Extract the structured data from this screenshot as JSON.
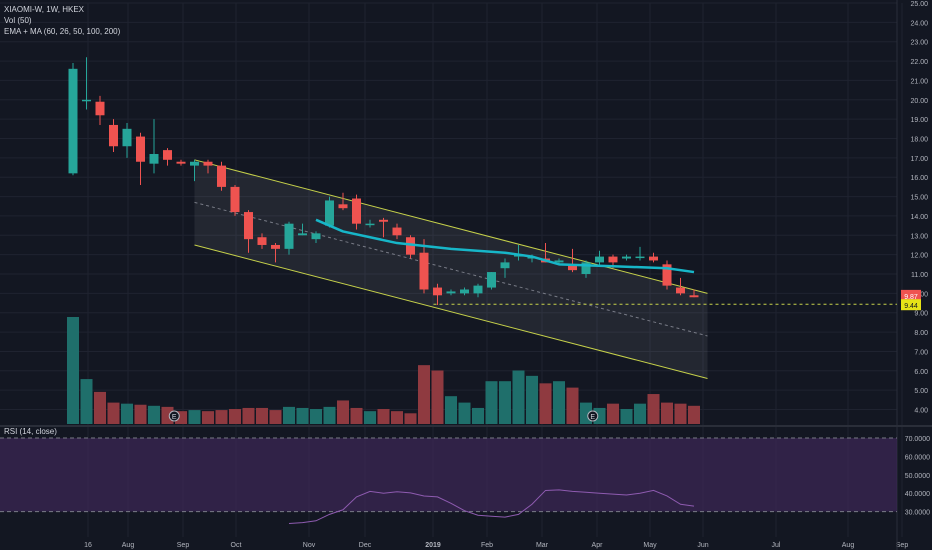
{
  "legend": {
    "title": "XIAOMI-W, 1W, HKEX",
    "volume": "Vol (50)",
    "ma": "EMA + MA (60, 26, 50, 100, 200)",
    "rsi": "RSI (14, close)"
  },
  "colors": {
    "up": "#26a69a",
    "down": "#ef5350",
    "up_volume": "#1f6f6b",
    "down_volume": "#8f3a40",
    "ma_line": "#17b6c8",
    "channel": "#c6d14a",
    "rsi_band": "#3b2754",
    "rsi_line": "#8e5bb0",
    "grid": "#1f2330",
    "background": "#131722"
  },
  "chart_data": [
    {
      "type": "candlestick",
      "title": "XIAOMI-W, 1W, HKEX",
      "ylim": [
        3.2,
        25.0
      ],
      "y_ticks": [
        "25.00",
        "24.00",
        "23.00",
        "22.00",
        "21.00",
        "20.00",
        "19.00",
        "18.00",
        "17.00",
        "16.00",
        "15.00",
        "14.00",
        "13.00",
        "12.00",
        "11.00",
        "10.00",
        "9.00",
        "8.00",
        "7.00",
        "6.00",
        "5.00",
        "4.00"
      ],
      "x_ticks": [
        "16",
        "Aug",
        "Sep",
        "Oct",
        "Nov",
        "Dec",
        "2019",
        "Feb",
        "Mar",
        "Apr",
        "May",
        "Jun",
        "Jul",
        "Aug",
        "Sep"
      ],
      "price_labels": {
        "last": "9.87",
        "level": "9.44"
      },
      "horizontal_level": 9.44,
      "candles": [
        {
          "o": 16.2,
          "h": 21.9,
          "l": 16.1,
          "c": 21.6
        },
        {
          "o": 20.0,
          "h": 22.2,
          "l": 19.5,
          "c": 20.0
        },
        {
          "o": 19.9,
          "h": 20.2,
          "l": 18.7,
          "c": 19.2
        },
        {
          "o": 18.7,
          "h": 19.0,
          "l": 17.3,
          "c": 17.6
        },
        {
          "o": 17.6,
          "h": 18.8,
          "l": 17.0,
          "c": 18.5
        },
        {
          "o": 18.1,
          "h": 18.3,
          "l": 15.6,
          "c": 16.8
        },
        {
          "o": 16.7,
          "h": 19.0,
          "l": 16.2,
          "c": 17.2
        },
        {
          "o": 17.4,
          "h": 17.5,
          "l": 16.6,
          "c": 16.9
        },
        {
          "o": 16.8,
          "h": 16.9,
          "l": 16.6,
          "c": 16.7
        },
        {
          "o": 16.6,
          "h": 16.9,
          "l": 15.8,
          "c": 16.8
        },
        {
          "o": 16.8,
          "h": 16.9,
          "l": 16.2,
          "c": 16.6
        },
        {
          "o": 16.6,
          "h": 16.8,
          "l": 15.3,
          "c": 15.5
        },
        {
          "o": 15.5,
          "h": 15.6,
          "l": 14.0,
          "c": 14.2
        },
        {
          "o": 14.2,
          "h": 14.3,
          "l": 12.1,
          "c": 12.8
        },
        {
          "o": 12.9,
          "h": 13.1,
          "l": 12.3,
          "c": 12.5
        },
        {
          "o": 12.5,
          "h": 12.6,
          "l": 11.6,
          "c": 12.3
        },
        {
          "o": 12.3,
          "h": 13.7,
          "l": 12.0,
          "c": 13.6
        },
        {
          "o": 13.0,
          "h": 13.6,
          "l": 13.0,
          "c": 13.1
        },
        {
          "o": 12.8,
          "h": 13.2,
          "l": 12.6,
          "c": 13.1
        },
        {
          "o": 13.5,
          "h": 15.0,
          "l": 13.4,
          "c": 14.8
        },
        {
          "o": 14.6,
          "h": 15.2,
          "l": 14.3,
          "c": 14.4
        },
        {
          "o": 14.9,
          "h": 15.1,
          "l": 13.3,
          "c": 13.6
        },
        {
          "o": 13.6,
          "h": 13.8,
          "l": 13.4,
          "c": 13.6
        },
        {
          "o": 13.8,
          "h": 13.9,
          "l": 12.9,
          "c": 13.7
        },
        {
          "o": 13.4,
          "h": 13.6,
          "l": 12.8,
          "c": 13.0
        },
        {
          "o": 12.9,
          "h": 13.0,
          "l": 11.8,
          "c": 12.0
        },
        {
          "o": 12.1,
          "h": 12.8,
          "l": 10.0,
          "c": 10.2
        },
        {
          "o": 10.3,
          "h": 10.5,
          "l": 9.4,
          "c": 9.9
        },
        {
          "o": 10.0,
          "h": 10.2,
          "l": 9.9,
          "c": 10.1
        },
        {
          "o": 10.0,
          "h": 10.3,
          "l": 9.9,
          "c": 10.2
        },
        {
          "o": 10.0,
          "h": 10.5,
          "l": 9.8,
          "c": 10.4
        },
        {
          "o": 10.3,
          "h": 11.1,
          "l": 10.2,
          "c": 11.1
        },
        {
          "o": 11.3,
          "h": 11.8,
          "l": 10.8,
          "c": 11.6
        },
        {
          "o": 11.9,
          "h": 12.5,
          "l": 11.7,
          "c": 12.0
        },
        {
          "o": 11.8,
          "h": 12.0,
          "l": 11.6,
          "c": 11.9
        },
        {
          "o": 11.8,
          "h": 12.6,
          "l": 11.6,
          "c": 11.6
        },
        {
          "o": 11.6,
          "h": 11.8,
          "l": 11.5,
          "c": 11.7
        },
        {
          "o": 11.5,
          "h": 12.3,
          "l": 11.1,
          "c": 11.2
        },
        {
          "o": 11.0,
          "h": 11.7,
          "l": 10.8,
          "c": 11.6
        },
        {
          "o": 11.6,
          "h": 12.2,
          "l": 11.4,
          "c": 11.9
        },
        {
          "o": 11.9,
          "h": 12.0,
          "l": 11.3,
          "c": 11.6
        },
        {
          "o": 11.8,
          "h": 12.0,
          "l": 11.7,
          "c": 11.9
        },
        {
          "o": 11.9,
          "h": 12.4,
          "l": 11.7,
          "c": 11.9
        },
        {
          "o": 11.9,
          "h": 12.1,
          "l": 11.6,
          "c": 11.7
        },
        {
          "o": 11.5,
          "h": 11.7,
          "l": 10.2,
          "c": 10.4
        },
        {
          "o": 10.3,
          "h": 10.8,
          "l": 9.9,
          "c": 10.0
        },
        {
          "o": 9.9,
          "h": 10.2,
          "l": 9.8,
          "c": 9.8
        }
      ],
      "moving_average": [
        [
          18,
          13.8
        ],
        [
          20,
          13.2
        ],
        [
          24,
          12.6
        ],
        [
          28,
          12.3
        ],
        [
          32,
          12.1
        ],
        [
          34,
          11.9
        ],
        [
          36,
          11.5
        ],
        [
          40,
          11.4
        ],
        [
          44,
          11.3
        ],
        [
          46,
          11.1
        ]
      ],
      "channel": {
        "upper": [
          [
            9,
            16.9
          ],
          [
            47,
            10.0
          ]
        ],
        "lower": [
          [
            9,
            12.5
          ],
          [
            47,
            5.6
          ]
        ],
        "mid": [
          [
            9,
            14.7
          ],
          [
            47,
            7.8
          ]
        ]
      },
      "volume_ylim": [
        0,
        100
      ],
      "volume": [
        100,
        42,
        30,
        20,
        19,
        18,
        17,
        16,
        12,
        13,
        12,
        13,
        14,
        15,
        15,
        13,
        16,
        15,
        14,
        16,
        22,
        15,
        12,
        14,
        12,
        10,
        55,
        50,
        26,
        20,
        15,
        40,
        40,
        50,
        45,
        38,
        40,
        34,
        20,
        15,
        19,
        14,
        19,
        28,
        20,
        19,
        17
      ]
    },
    {
      "type": "line",
      "title": "RSI (14, close)",
      "ylim": [
        20,
        70
      ],
      "y_ticks": [
        "70.0000",
        "60.0000",
        "50.0000",
        "40.0000",
        "30.0000"
      ],
      "bands": [
        30,
        70
      ],
      "series": [
        {
          "values": [
            null,
            null,
            null,
            null,
            null,
            null,
            null,
            null,
            null,
            null,
            null,
            null,
            null,
            null,
            null,
            null,
            23.5,
            24.0,
            25.0,
            28.5,
            31.0,
            38.0,
            41.0,
            40.0,
            40.8,
            40.2,
            38.5,
            38.0,
            34.5,
            30.5,
            28.0,
            27.5,
            27.0,
            28.5,
            34.0,
            41.5,
            41.8,
            41.0,
            40.5,
            40.0,
            39.5,
            39.0,
            40.0,
            41.5,
            38.5,
            34.0,
            33.0
          ]
        }
      ]
    }
  ]
}
